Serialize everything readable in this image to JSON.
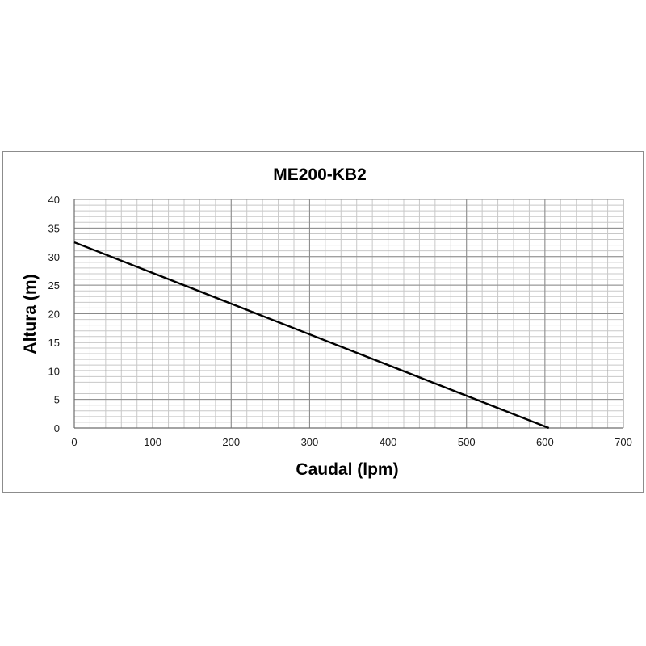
{
  "chart_data": {
    "type": "line",
    "title": "ME200-KB2",
    "xlabel": "Caudal (lpm)",
    "ylabel": "Altura (m)",
    "xlim": [
      0,
      700
    ],
    "ylim": [
      0,
      40
    ],
    "xticks": [
      0,
      100,
      200,
      300,
      400,
      500,
      600,
      700
    ],
    "yticks": [
      0,
      5,
      10,
      15,
      20,
      25,
      30,
      35,
      40
    ],
    "grid": true,
    "minor_grid": {
      "x_step": 20,
      "y_step": 1
    },
    "series": [
      {
        "x": [
          0,
          605
        ],
        "y": [
          32.5,
          0
        ],
        "color": "#000000"
      }
    ]
  }
}
